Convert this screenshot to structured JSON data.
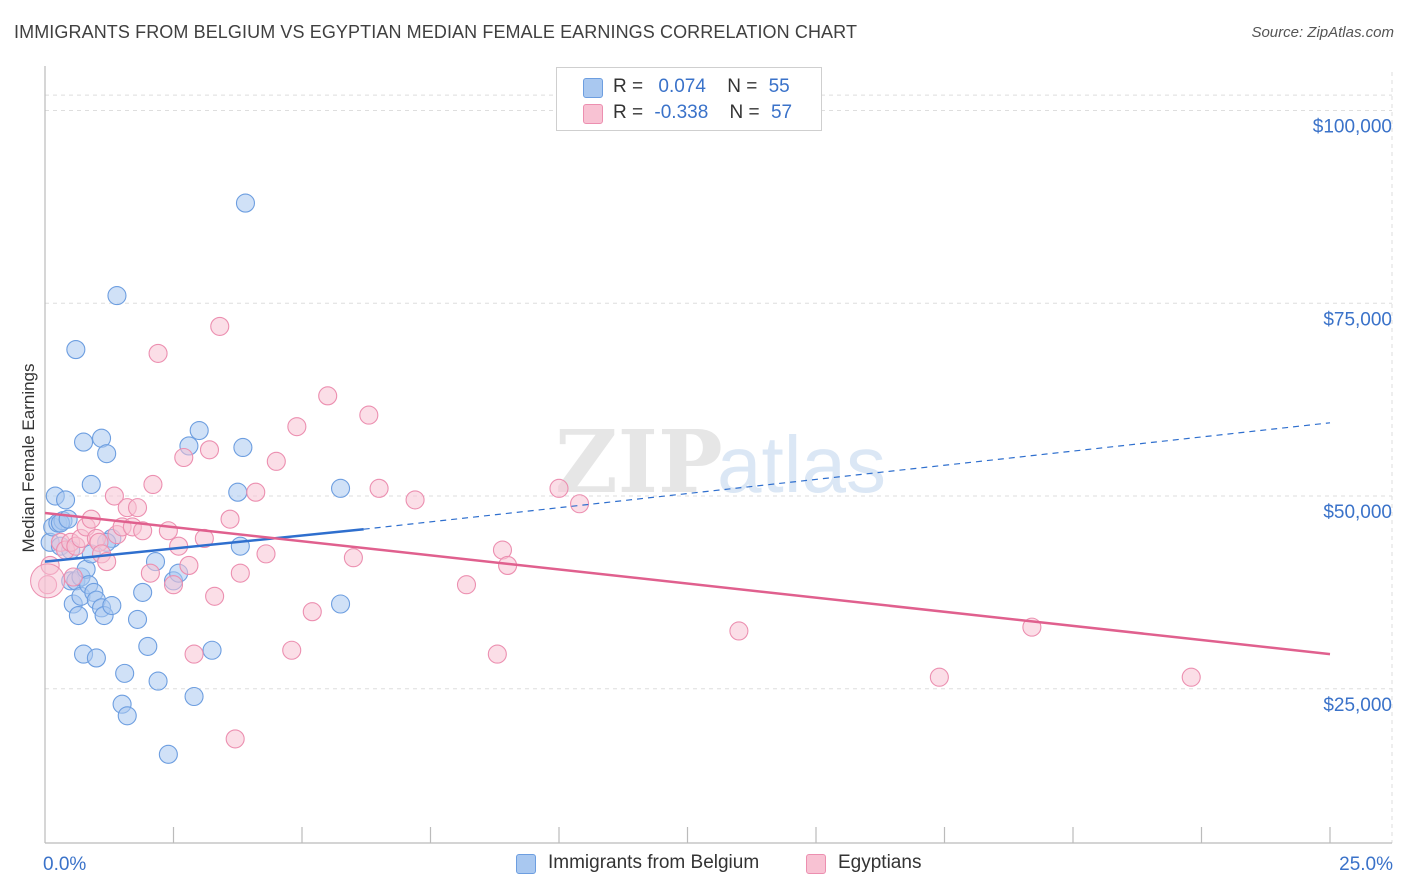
{
  "header": {
    "title": "IMMIGRANTS FROM BELGIUM VS EGYPTIAN MEDIAN FEMALE EARNINGS CORRELATION CHART",
    "source": "Source: ZipAtlas.com"
  },
  "legend": {
    "rows": [
      {
        "r_label": "R =",
        "r_value": "0.074",
        "n_label": "N =",
        "n_value": "55",
        "color": "#a9c8f0",
        "border": "#6d9ee0"
      },
      {
        "r_label": "R =",
        "r_value": "-0.338",
        "n_label": "N =",
        "n_value": "57",
        "color": "#f8c2d3",
        "border": "#ec8fb0"
      }
    ]
  },
  "watermark": {
    "zip": "ZIP",
    "atlas": "atlas"
  },
  "chart_data": {
    "type": "scatter",
    "ylabel": "Median Female Earnings",
    "xlim": [
      0,
      25
    ],
    "ylim": [
      5000,
      105000
    ],
    "x_tick_labels": [
      {
        "value": 0,
        "label": "0.0%"
      },
      {
        "value": 25,
        "label": "25.0%"
      }
    ],
    "y_tick_labels": [
      {
        "value": 100000,
        "label": "$100,000"
      },
      {
        "value": 75000,
        "label": "$75,000"
      },
      {
        "value": 50000,
        "label": "$50,000"
      },
      {
        "value": 25000,
        "label": "$25,000"
      }
    ],
    "grid": true,
    "series": [
      {
        "name": "Immigrants from Belgium",
        "color": "#6d9ee0",
        "fill": "#a9c8f0",
        "trend": {
          "x": [
            0,
            6.2
          ],
          "y": [
            41500,
            45700
          ],
          "dashed_x": [
            6.2,
            25
          ],
          "dashed_y": [
            45700,
            59500
          ],
          "line_color": "#2f6fce"
        },
        "points": [
          [
            0.1,
            44000
          ],
          [
            0.15,
            46000
          ],
          [
            0.2,
            50000
          ],
          [
            0.25,
            46500
          ],
          [
            0.3,
            43500
          ],
          [
            0.35,
            46800
          ],
          [
            0.4,
            49500
          ],
          [
            0.5,
            39000
          ],
          [
            0.55,
            36000
          ],
          [
            0.6,
            69000
          ],
          [
            0.6,
            39000
          ],
          [
            0.65,
            34500
          ],
          [
            0.7,
            39500
          ],
          [
            0.7,
            37000
          ],
          [
            0.75,
            57000
          ],
          [
            0.75,
            29500
          ],
          [
            0.8,
            40500
          ],
          [
            0.85,
            38500
          ],
          [
            0.9,
            42500
          ],
          [
            0.9,
            51500
          ],
          [
            0.95,
            37500
          ],
          [
            1.0,
            36500
          ],
          [
            1.0,
            29000
          ],
          [
            1.1,
            57500
          ],
          [
            1.1,
            35500
          ],
          [
            1.15,
            34500
          ],
          [
            1.2,
            55500
          ],
          [
            1.3,
            44500
          ],
          [
            1.3,
            35800
          ],
          [
            1.4,
            76000
          ],
          [
            1.5,
            23000
          ],
          [
            1.55,
            27000
          ],
          [
            1.6,
            21500
          ],
          [
            1.8,
            34000
          ],
          [
            1.9,
            37500
          ],
          [
            2.0,
            30500
          ],
          [
            2.15,
            41500
          ],
          [
            2.2,
            26000
          ],
          [
            2.4,
            16500
          ],
          [
            2.5,
            39000
          ],
          [
            2.6,
            40000
          ],
          [
            2.8,
            56500
          ],
          [
            2.9,
            24000
          ],
          [
            3.0,
            58500
          ],
          [
            3.25,
            30000
          ],
          [
            3.75,
            50500
          ],
          [
            3.8,
            43500
          ],
          [
            3.85,
            56300
          ],
          [
            3.9,
            88000
          ],
          [
            5.75,
            51000
          ],
          [
            5.75,
            36000
          ],
          [
            0.3,
            46500
          ],
          [
            0.45,
            47000
          ],
          [
            0.5,
            43000
          ],
          [
            1.2,
            44000
          ]
        ]
      },
      {
        "name": "Egyptians",
        "color": "#ec8fb0",
        "fill": "#f8c2d3",
        "trend": {
          "x": [
            0,
            25
          ],
          "y": [
            47800,
            29500
          ],
          "line_color": "#e0608e"
        },
        "points": [
          [
            0.05,
            38500
          ],
          [
            0.1,
            41000
          ],
          [
            0.3,
            44000
          ],
          [
            0.4,
            43000
          ],
          [
            0.5,
            44000
          ],
          [
            0.55,
            39500
          ],
          [
            0.6,
            43500
          ],
          [
            0.7,
            44500
          ],
          [
            0.8,
            46000
          ],
          [
            0.9,
            47000
          ],
          [
            1.0,
            44500
          ],
          [
            1.05,
            44000
          ],
          [
            1.1,
            42500
          ],
          [
            1.2,
            41500
          ],
          [
            1.35,
            50000
          ],
          [
            1.4,
            45000
          ],
          [
            1.5,
            46000
          ],
          [
            1.6,
            48500
          ],
          [
            1.7,
            46000
          ],
          [
            1.8,
            48500
          ],
          [
            1.9,
            45500
          ],
          [
            2.05,
            40000
          ],
          [
            2.1,
            51500
          ],
          [
            2.2,
            68500
          ],
          [
            2.4,
            45500
          ],
          [
            2.5,
            38500
          ],
          [
            2.6,
            43500
          ],
          [
            2.7,
            55000
          ],
          [
            2.8,
            41000
          ],
          [
            2.9,
            29500
          ],
          [
            3.1,
            44500
          ],
          [
            3.2,
            56000
          ],
          [
            3.3,
            37000
          ],
          [
            3.4,
            72000
          ],
          [
            3.6,
            47000
          ],
          [
            3.7,
            18500
          ],
          [
            3.8,
            40000
          ],
          [
            4.1,
            50500
          ],
          [
            4.3,
            42500
          ],
          [
            4.5,
            54500
          ],
          [
            4.8,
            30000
          ],
          [
            4.9,
            59000
          ],
          [
            5.2,
            35000
          ],
          [
            5.5,
            63000
          ],
          [
            6.0,
            42000
          ],
          [
            6.3,
            60500
          ],
          [
            6.5,
            51000
          ],
          [
            7.2,
            49500
          ],
          [
            8.2,
            38500
          ],
          [
            8.8,
            29500
          ],
          [
            8.9,
            43000
          ],
          [
            9.0,
            41000
          ],
          [
            10.0,
            51000
          ],
          [
            10.4,
            49000
          ],
          [
            13.5,
            32500
          ],
          [
            17.4,
            26500
          ],
          [
            19.2,
            33000
          ]
        ]
      }
    ],
    "extra_points_egypt_tail": [
      [
        22.3,
        26500
      ]
    ]
  }
}
